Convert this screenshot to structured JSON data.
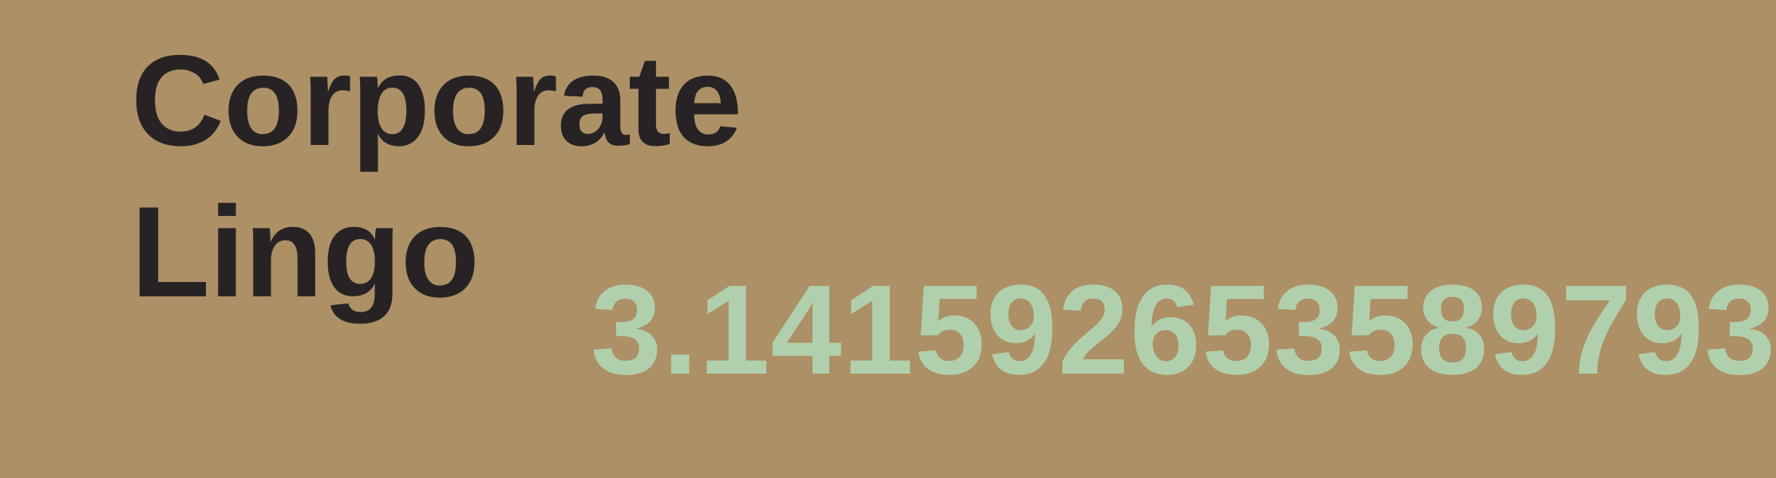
{
  "title": {
    "line1": "Corporate",
    "line2": "Lingo"
  },
  "pi_text": "3.141592653589793",
  "colors": {
    "background": "#ad9066",
    "title_text": "#272324",
    "number_text": "#b0d0ad"
  }
}
